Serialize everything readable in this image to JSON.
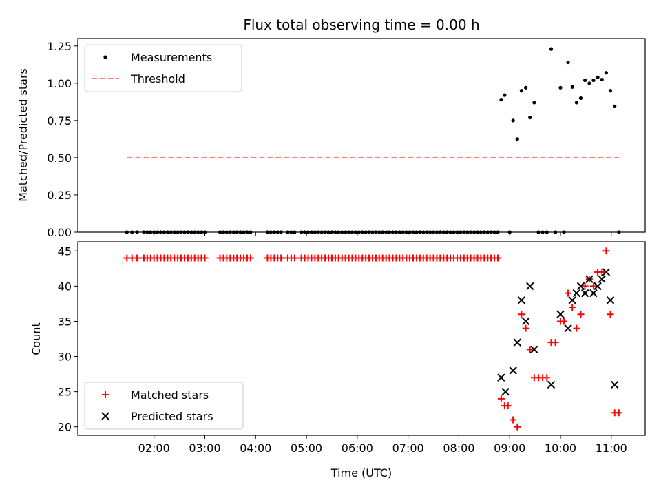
{
  "chart_data": [
    {
      "type": "scatter",
      "title": "Flux total observing time = 0.00 h",
      "xlabel": "",
      "ylabel": "Matched/Predicted stars",
      "ylim": [
        0,
        1.3
      ],
      "yticks": [
        "0.00",
        "0.25",
        "0.50",
        "0.75",
        "1.00",
        "1.25"
      ],
      "xlim_hours": [
        0.5,
        11.667
      ],
      "legend": "top-left",
      "grid": false,
      "series": [
        {
          "name": "Measurements",
          "marker": "dot",
          "color": "#000000",
          "x": [
            1.467,
            1.567,
            1.667,
            1.8,
            1.867,
            1.933,
            2.0,
            2.067,
            2.133,
            2.2,
            2.267,
            2.333,
            2.4,
            2.467,
            2.533,
            2.6,
            2.667,
            2.733,
            2.8,
            2.867,
            2.933,
            3.0,
            3.3,
            3.367,
            3.433,
            3.5,
            3.567,
            3.633,
            3.7,
            3.767,
            3.833,
            3.9,
            4.233,
            4.3,
            4.367,
            4.433,
            4.5,
            4.633,
            4.7,
            4.767,
            4.9,
            4.967,
            5.033,
            5.1,
            5.167,
            5.233,
            5.3,
            5.367,
            5.433,
            5.5,
            5.567,
            5.633,
            5.7,
            5.767,
            5.833,
            5.9,
            5.967,
            6.033,
            6.1,
            6.167,
            6.233,
            6.3,
            6.367,
            6.433,
            6.5,
            6.567,
            6.633,
            6.7,
            6.767,
            6.833,
            6.9,
            6.967,
            7.033,
            7.1,
            7.167,
            7.233,
            7.3,
            7.367,
            7.433,
            7.5,
            7.567,
            7.633,
            7.7,
            7.767,
            7.833,
            7.9,
            7.967,
            8.033,
            8.1,
            8.167,
            8.233,
            8.3,
            8.367,
            8.433,
            8.5,
            8.567,
            8.633,
            8.7,
            8.767,
            8.833,
            8.9,
            9.0,
            9.067,
            9.15,
            9.233,
            9.317,
            9.4,
            9.483,
            9.567,
            9.65,
            9.733,
            9.817,
            9.9,
            10.0,
            10.067,
            10.15,
            10.233,
            10.317,
            10.4,
            10.483,
            10.567,
            10.65,
            10.733,
            10.817,
            10.9,
            10.983,
            11.067,
            11.15
          ],
          "y": [
            0,
            0,
            0,
            0,
            0,
            0,
            0,
            0,
            0,
            0,
            0,
            0,
            0,
            0,
            0,
            0,
            0,
            0,
            0,
            0,
            0,
            0,
            0,
            0,
            0,
            0,
            0,
            0,
            0,
            0,
            0,
            0,
            0,
            0,
            0,
            0,
            0,
            0,
            0,
            0,
            0,
            0,
            0,
            0,
            0,
            0,
            0,
            0,
            0,
            0,
            0,
            0,
            0,
            0,
            0,
            0,
            0,
            0,
            0,
            0,
            0,
            0,
            0,
            0,
            0,
            0,
            0,
            0,
            0,
            0,
            0,
            0,
            0,
            0,
            0,
            0,
            0,
            0,
            0,
            0,
            0,
            0,
            0,
            0,
            0,
            0,
            0,
            0,
            0,
            0,
            0,
            0,
            0,
            0,
            0,
            0,
            0,
            0,
            0,
            0.89,
            0.92,
            0,
            0.75,
            0.625,
            0.95,
            0.97,
            0.77,
            0.87,
            0,
            0,
            0,
            1.23,
            0,
            0.97,
            0,
            1.14,
            0.975,
            0.87,
            0.9,
            1.02,
            1.0,
            1.02,
            1.04,
            1.025,
            1.07,
            0.95,
            0.845,
            0
          ]
        },
        {
          "name": "Threshold",
          "marker": "dashed-line",
          "color": "#ff7f7f",
          "x": [
            1.467,
            11.15
          ],
          "y": [
            0.5,
            0.5
          ]
        }
      ]
    },
    {
      "type": "scatter",
      "xlabel": "Time (UTC)",
      "ylabel": "Count",
      "ylim": [
        18.8,
        46.3
      ],
      "yticks": [
        "20",
        "25",
        "30",
        "35",
        "40",
        "45"
      ],
      "xlim_hours": [
        0.5,
        11.667
      ],
      "xticks": [
        "02:00",
        "03:00",
        "04:00",
        "05:00",
        "06:00",
        "07:00",
        "08:00",
        "09:00",
        "10:00",
        "11:00"
      ],
      "legend": "bottom-left",
      "grid": false,
      "series": [
        {
          "name": "Matched stars",
          "marker": "plus",
          "color": "#ff0000",
          "x": [
            1.467,
            1.567,
            1.667,
            1.8,
            1.867,
            1.933,
            2.0,
            2.067,
            2.133,
            2.2,
            2.267,
            2.333,
            2.4,
            2.467,
            2.533,
            2.6,
            2.667,
            2.733,
            2.8,
            2.867,
            2.933,
            3.0,
            3.3,
            3.367,
            3.433,
            3.5,
            3.567,
            3.633,
            3.7,
            3.767,
            3.833,
            3.9,
            4.233,
            4.3,
            4.367,
            4.433,
            4.5,
            4.633,
            4.7,
            4.767,
            4.9,
            4.967,
            5.033,
            5.1,
            5.167,
            5.233,
            5.3,
            5.367,
            5.433,
            5.5,
            5.567,
            5.633,
            5.7,
            5.767,
            5.833,
            5.9,
            5.967,
            6.033,
            6.1,
            6.167,
            6.233,
            6.3,
            6.367,
            6.433,
            6.5,
            6.567,
            6.633,
            6.7,
            6.767,
            6.833,
            6.9,
            6.967,
            7.033,
            7.1,
            7.167,
            7.233,
            7.3,
            7.367,
            7.433,
            7.5,
            7.567,
            7.633,
            7.7,
            7.767,
            7.833,
            7.9,
            7.967,
            8.033,
            8.1,
            8.167,
            8.233,
            8.3,
            8.367,
            8.433,
            8.5,
            8.567,
            8.633,
            8.7,
            8.767,
            8.833,
            8.9,
            8.967,
            9.067,
            9.15,
            9.233,
            9.317,
            9.4,
            9.483,
            9.567,
            9.65,
            9.733,
            9.817,
            9.9,
            10.0,
            10.067,
            10.15,
            10.233,
            10.317,
            10.4,
            10.483,
            10.567,
            10.65,
            10.733,
            10.817,
            10.9,
            10.983,
            11.067,
            11.15
          ],
          "y": [
            44,
            44,
            44,
            44,
            44,
            44,
            44,
            44,
            44,
            44,
            44,
            44,
            44,
            44,
            44,
            44,
            44,
            44,
            44,
            44,
            44,
            44,
            44,
            44,
            44,
            44,
            44,
            44,
            44,
            44,
            44,
            44,
            44,
            44,
            44,
            44,
            44,
            44,
            44,
            44,
            44,
            44,
            44,
            44,
            44,
            44,
            44,
            44,
            44,
            44,
            44,
            44,
            44,
            44,
            44,
            44,
            44,
            44,
            44,
            44,
            44,
            44,
            44,
            44,
            44,
            44,
            44,
            44,
            44,
            44,
            44,
            44,
            44,
            44,
            44,
            44,
            44,
            44,
            44,
            44,
            44,
            44,
            44,
            44,
            44,
            44,
            44,
            44,
            44,
            44,
            44,
            44,
            44,
            44,
            44,
            44,
            44,
            44,
            44,
            24,
            23,
            23,
            21,
            20,
            36,
            34,
            31,
            27,
            27,
            27,
            27,
            32,
            32,
            35,
            35,
            39,
            37,
            34,
            36,
            40,
            41,
            40,
            42,
            42,
            45,
            36,
            22,
            22
          ]
        },
        {
          "name": "Predicted stars",
          "marker": "x",
          "color": "#000000",
          "x": [
            8.833,
            8.917,
            9.067,
            9.15,
            9.233,
            9.317,
            9.4,
            9.483,
            9.817,
            10.0,
            10.15,
            10.233,
            10.317,
            10.4,
            10.483,
            10.567,
            10.65,
            10.733,
            10.817,
            10.9,
            10.983,
            11.067
          ],
          "y": [
            27,
            25,
            28,
            32,
            38,
            35,
            40,
            31,
            26,
            36,
            34,
            38,
            39,
            40,
            39,
            41,
            39,
            40,
            41,
            42,
            38,
            26
          ]
        }
      ]
    }
  ]
}
